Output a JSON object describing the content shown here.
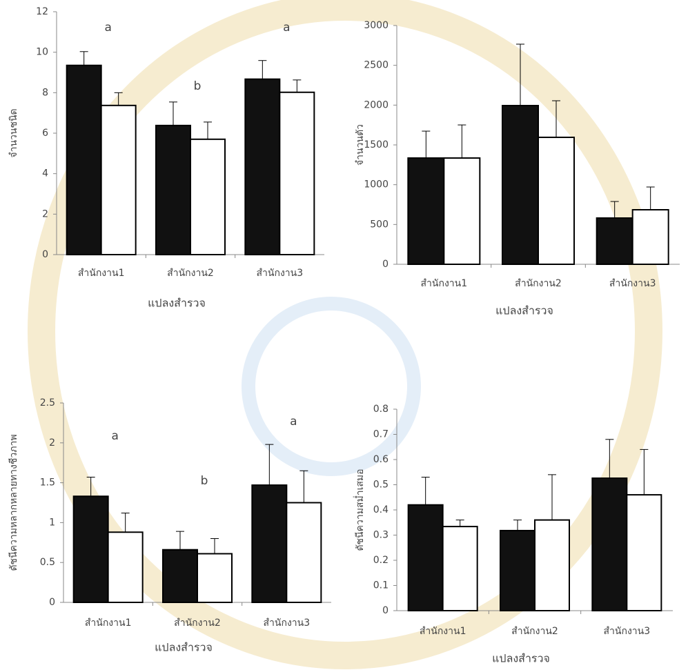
{
  "chart_data": [
    {
      "type": "bar",
      "ylabel": "จำนวนชนิด",
      "xlabel": "แปลงสำรวจ",
      "categories": [
        "สำนักงาน1",
        "สำนักงาน2",
        "สำนักงาน3"
      ],
      "series": [
        {
          "color": "#111111",
          "values": [
            9.35,
            6.38,
            8.67
          ],
          "errors": [
            0.68,
            1.16,
            0.92
          ]
        },
        {
          "color": "#ffffff",
          "values": [
            7.37,
            5.7,
            8.02
          ],
          "errors": [
            0.63,
            0.85,
            0.61
          ]
        }
      ],
      "ylim": [
        0,
        12
      ],
      "yticks": [
        0,
        2,
        4,
        6,
        8,
        10,
        12
      ],
      "annotations": [
        "a",
        "b",
        "a"
      ]
    },
    {
      "type": "bar",
      "ylabel": "จำนวนตัว",
      "xlabel": "แปลงสำรวจ",
      "categories": [
        "สำนักงาน1",
        "สำนักงาน2",
        "สำนักงาน3"
      ],
      "series": [
        {
          "color": "#111111",
          "values": [
            1335,
            1994,
            581
          ],
          "errors": [
            338,
            772,
            208
          ]
        },
        {
          "color": "#ffffff",
          "values": [
            1335,
            1595,
            685
          ],
          "errors": [
            416,
            460,
            286
          ]
        }
      ],
      "ylim": [
        0,
        3000
      ],
      "yticks": [
        0,
        500,
        1000,
        1500,
        2000,
        2500,
        3000
      ]
    },
    {
      "type": "bar",
      "ylabel": "ดัชนีความหลากหลายทางชีวภาพ",
      "xlabel": "แปลงสำรวจ",
      "categories": [
        "สำนักงาน1",
        "สำนักงาน2",
        "สำนักงาน3"
      ],
      "series": [
        {
          "color": "#111111",
          "values": [
            1.33,
            0.66,
            1.47
          ],
          "errors": [
            0.24,
            0.23,
            0.51
          ]
        },
        {
          "color": "#ffffff",
          "values": [
            0.88,
            0.61,
            1.25
          ],
          "errors": [
            0.24,
            0.19,
            0.4
          ]
        }
      ],
      "ylim": [
        0,
        2.5
      ],
      "yticks": [
        0,
        0.5,
        1,
        1.5,
        2,
        2.5
      ],
      "annotations": [
        "a",
        "b",
        "a"
      ]
    },
    {
      "type": "bar",
      "ylabel": "ดัชนีความสม่ำเสมอ",
      "xlabel": "แปลงสำรวจ",
      "categories": [
        "สำนักงาน1",
        "สำนักงาน2",
        "สำนักงาน3"
      ],
      "series": [
        {
          "color": "#111111",
          "values": [
            0.42,
            0.318,
            0.526
          ],
          "errors": [
            0.11,
            0.042,
            0.154
          ]
        },
        {
          "color": "#ffffff",
          "values": [
            0.334,
            0.36,
            0.46
          ],
          "errors": [
            0.026,
            0.18,
            0.18
          ]
        }
      ],
      "ylim": [
        0,
        0.8
      ],
      "yticks": [
        0,
        0.1,
        0.2,
        0.3,
        0.4,
        0.5,
        0.6,
        0.7,
        0.8
      ]
    }
  ]
}
